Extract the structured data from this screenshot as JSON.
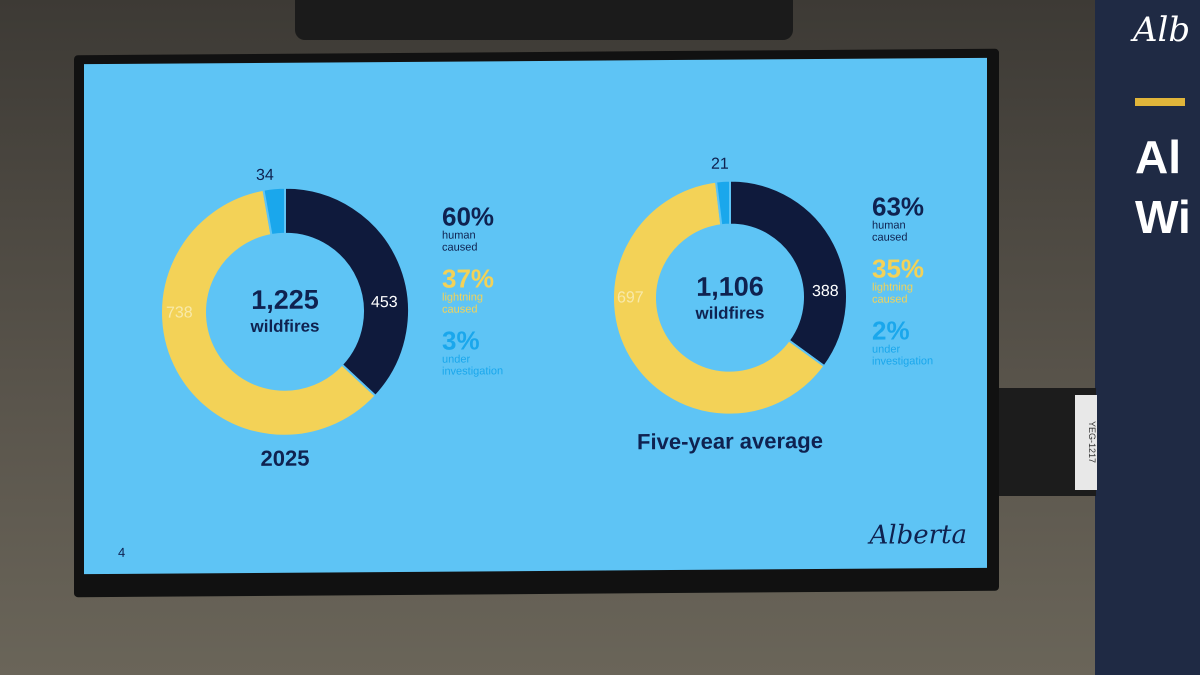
{
  "slide": {
    "page_number": "4",
    "logo": "Alberta"
  },
  "banner": {
    "line1": "Al",
    "line2": "Wi",
    "logo": "Alb"
  },
  "device_label": "YEG-1217",
  "colors": {
    "human": "#f3d257",
    "lightning": "#0f1a3c",
    "investigation": "#1aa7ec",
    "background": "#5ec4f5"
  },
  "chart_data": [
    {
      "type": "pie",
      "donut": true,
      "title": "2025",
      "center": {
        "value": "1,225",
        "label": "wildfires"
      },
      "categories": [
        "lightning caused",
        "human caused",
        "under investigation"
      ],
      "values": [
        453,
        738,
        34
      ],
      "value_labels": [
        "453",
        "738",
        "34"
      ],
      "legend": [
        {
          "pct": "60%",
          "label": "human caused"
        },
        {
          "pct": "37%",
          "label": "lightning caused"
        },
        {
          "pct": "3%",
          "label": "under investigation"
        }
      ]
    },
    {
      "type": "pie",
      "donut": true,
      "title": "Five-year average",
      "center": {
        "value": "1,106",
        "label": "wildfires"
      },
      "categories": [
        "lightning caused",
        "human caused",
        "under investigation"
      ],
      "values": [
        388,
        697,
        21
      ],
      "value_labels": [
        "388",
        "697",
        "21"
      ],
      "legend": [
        {
          "pct": "63%",
          "label": "human caused"
        },
        {
          "pct": "35%",
          "label": "lightning caused"
        },
        {
          "pct": "2%",
          "label": "under investigation"
        }
      ]
    }
  ]
}
